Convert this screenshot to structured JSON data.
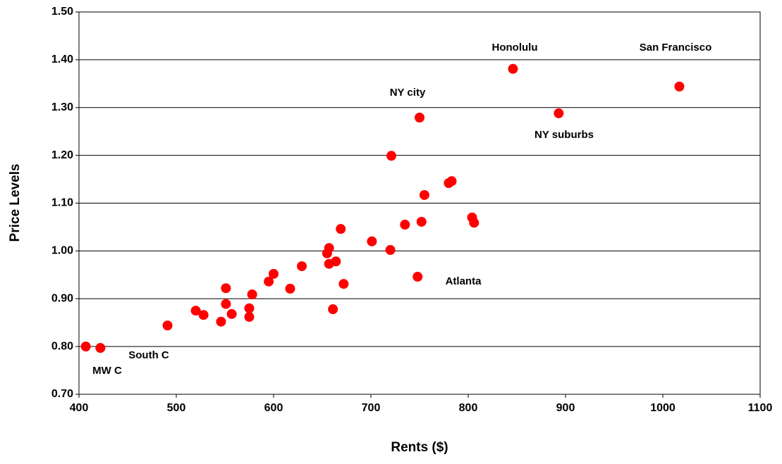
{
  "chart_data": {
    "type": "scatter",
    "x_label": "Rents ($)",
    "y_label": "Price Levels",
    "color": "#ff0000",
    "grid": true,
    "xlim": [
      400,
      1100
    ],
    "xticks": [
      400,
      500,
      600,
      700,
      800,
      900,
      1000,
      1100
    ],
    "ylim": [
      0.7,
      1.5
    ],
    "yticks": [
      {
        "value": 0.7,
        "label": "0.70"
      },
      {
        "value": 0.8,
        "label": "0.80"
      },
      {
        "value": 0.9,
        "label": "0.90"
      },
      {
        "value": 1.0,
        "label": "1.00"
      },
      {
        "value": 1.1,
        "label": "1.10"
      },
      {
        "value": 1.2,
        "label": "1.20"
      },
      {
        "value": 1.3,
        "label": "1.30"
      },
      {
        "value": 1.4,
        "label": "1.40"
      },
      {
        "value": 1.5,
        "label": "1.50"
      }
    ],
    "x": [
      407,
      422,
      491,
      520,
      528,
      546,
      551,
      551,
      557,
      575,
      575,
      578,
      595,
      600,
      617,
      629,
      655,
      657,
      657,
      664,
      661,
      669,
      672,
      701,
      721,
      720,
      735,
      750,
      748,
      752,
      755,
      780,
      783,
      804,
      806,
      846,
      893,
      1017
    ],
    "values": [
      0.8,
      0.797,
      0.844,
      0.875,
      0.866,
      0.852,
      0.922,
      0.889,
      0.868,
      0.88,
      0.862,
      0.909,
      0.936,
      0.952,
      0.921,
      0.968,
      0.995,
      1.006,
      0.973,
      0.978,
      0.878,
      1.046,
      0.931,
      1.02,
      1.199,
      1.002,
      1.055,
      1.279,
      0.946,
      1.061,
      1.117,
      1.142,
      1.146,
      1.07,
      1.059,
      1.381,
      1.288,
      1.344
    ],
    "annotations": [
      "Honolulu",
      "San Francisco",
      "NY city",
      "NY suburbs",
      "Atlanta",
      "South C",
      "MW C"
    ]
  }
}
